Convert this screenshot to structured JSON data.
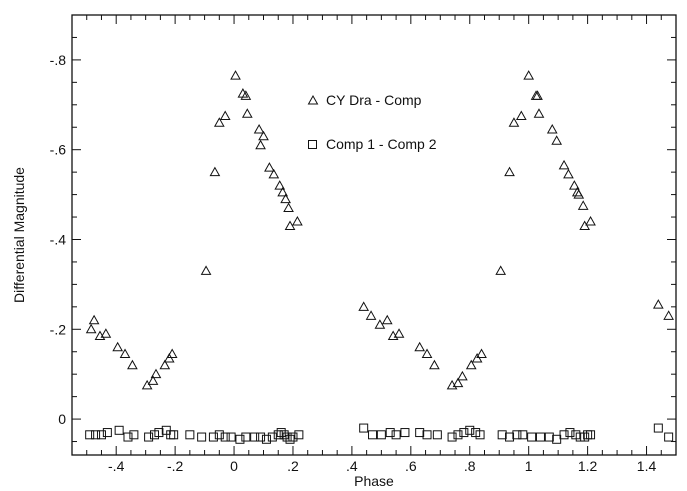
{
  "chart_data": {
    "type": "scatter",
    "title": "",
    "xlabel": "Phase",
    "ylabel": "Differential Magnitude",
    "xlim": [
      -0.55,
      1.5
    ],
    "ylim": [
      0.08,
      -0.9
    ],
    "y_inverted": true,
    "grid": false,
    "legend_position": "top-center",
    "x_ticks": [
      {
        "v": -0.4,
        "label": "-.4"
      },
      {
        "v": -0.2,
        "label": "-.2"
      },
      {
        "v": 0,
        "label": "0"
      },
      {
        "v": 0.2,
        "label": ".2"
      },
      {
        "v": 0.4,
        "label": ".4"
      },
      {
        "v": 0.6,
        "label": ".6"
      },
      {
        "v": 0.8,
        "label": ".8"
      },
      {
        "v": 1.0,
        "label": "1"
      },
      {
        "v": 1.2,
        "label": "1.2"
      },
      {
        "v": 1.4,
        "label": "1.4"
      }
    ],
    "y_ticks": [
      {
        "v": 0,
        "label": "0"
      },
      {
        "v": -0.2,
        "label": "-.2"
      },
      {
        "v": -0.4,
        "label": "-.4"
      },
      {
        "v": -0.6,
        "label": "-.6"
      },
      {
        "v": -0.8,
        "label": "-.8"
      }
    ],
    "series": [
      {
        "name": "CY Dra - Comp",
        "marker": "triangle",
        "points": [
          [
            -0.485,
            -0.2
          ],
          [
            -0.475,
            -0.22
          ],
          [
            -0.455,
            -0.185
          ],
          [
            -0.435,
            -0.19
          ],
          [
            -0.395,
            -0.16
          ],
          [
            -0.37,
            -0.145
          ],
          [
            -0.345,
            -0.12
          ],
          [
            -0.295,
            -0.075
          ],
          [
            -0.275,
            -0.085
          ],
          [
            -0.265,
            -0.1
          ],
          [
            -0.235,
            -0.12
          ],
          [
            -0.22,
            -0.135
          ],
          [
            -0.21,
            -0.145
          ],
          [
            -0.095,
            -0.33
          ],
          [
            -0.065,
            -0.55
          ],
          [
            -0.05,
            -0.66
          ],
          [
            -0.03,
            -0.675
          ],
          [
            0.005,
            -0.765
          ],
          [
            0.03,
            -0.725
          ],
          [
            0.04,
            -0.72
          ],
          [
            0.045,
            -0.68
          ],
          [
            0.085,
            -0.645
          ],
          [
            0.09,
            -0.61
          ],
          [
            0.1,
            -0.63
          ],
          [
            0.12,
            -0.56
          ],
          [
            0.135,
            -0.545
          ],
          [
            0.155,
            -0.52
          ],
          [
            0.165,
            -0.505
          ],
          [
            0.175,
            -0.49
          ],
          [
            0.185,
            -0.47
          ],
          [
            0.19,
            -0.43
          ],
          [
            0.215,
            -0.44
          ],
          [
            0.44,
            -0.25
          ],
          [
            0.465,
            -0.23
          ],
          [
            0.495,
            -0.21
          ],
          [
            0.52,
            -0.22
          ],
          [
            0.54,
            -0.185
          ],
          [
            0.56,
            -0.19
          ],
          [
            0.63,
            -0.16
          ],
          [
            0.655,
            -0.145
          ],
          [
            0.68,
            -0.12
          ],
          [
            0.74,
            -0.075
          ],
          [
            0.76,
            -0.08
          ],
          [
            0.775,
            -0.095
          ],
          [
            0.805,
            -0.12
          ],
          [
            0.825,
            -0.135
          ],
          [
            0.84,
            -0.145
          ],
          [
            0.905,
            -0.33
          ],
          [
            0.935,
            -0.55
          ],
          [
            0.95,
            -0.66
          ],
          [
            0.975,
            -0.675
          ],
          [
            1.0,
            -0.765
          ],
          [
            1.025,
            -0.72
          ],
          [
            1.03,
            -0.72
          ],
          [
            1.035,
            -0.68
          ],
          [
            1.08,
            -0.645
          ],
          [
            1.095,
            -0.62
          ],
          [
            1.12,
            -0.565
          ],
          [
            1.135,
            -0.545
          ],
          [
            1.155,
            -0.52
          ],
          [
            1.165,
            -0.505
          ],
          [
            1.17,
            -0.5
          ],
          [
            1.185,
            -0.475
          ],
          [
            1.19,
            -0.43
          ],
          [
            1.21,
            -0.44
          ],
          [
            1.44,
            -0.255
          ],
          [
            1.475,
            -0.23
          ]
        ]
      },
      {
        "name": "Comp 1 - Comp 2",
        "marker": "square",
        "points": [
          [
            -0.49,
            0.035
          ],
          [
            -0.47,
            0.035
          ],
          [
            -0.45,
            0.035
          ],
          [
            -0.43,
            0.03
          ],
          [
            -0.39,
            0.025
          ],
          [
            -0.36,
            0.04
          ],
          [
            -0.34,
            0.035
          ],
          [
            -0.29,
            0.04
          ],
          [
            -0.27,
            0.035
          ],
          [
            -0.255,
            0.03
          ],
          [
            -0.23,
            0.025
          ],
          [
            -0.215,
            0.035
          ],
          [
            -0.205,
            0.035
          ],
          [
            -0.15,
            0.035
          ],
          [
            -0.11,
            0.04
          ],
          [
            -0.07,
            0.04
          ],
          [
            -0.05,
            0.035
          ],
          [
            -0.03,
            0.04
          ],
          [
            -0.01,
            0.04
          ],
          [
            0.02,
            0.045
          ],
          [
            0.04,
            0.04
          ],
          [
            0.07,
            0.04
          ],
          [
            0.09,
            0.04
          ],
          [
            0.11,
            0.045
          ],
          [
            0.13,
            0.04
          ],
          [
            0.15,
            0.035
          ],
          [
            0.16,
            0.03
          ],
          [
            0.17,
            0.035
          ],
          [
            0.18,
            0.04
          ],
          [
            0.19,
            0.045
          ],
          [
            0.2,
            0.04
          ],
          [
            0.22,
            0.035
          ],
          [
            0.44,
            0.02
          ],
          [
            0.47,
            0.035
          ],
          [
            0.5,
            0.035
          ],
          [
            0.53,
            0.03
          ],
          [
            0.55,
            0.035
          ],
          [
            0.58,
            0.03
          ],
          [
            0.63,
            0.03
          ],
          [
            0.655,
            0.035
          ],
          [
            0.69,
            0.035
          ],
          [
            0.74,
            0.04
          ],
          [
            0.76,
            0.035
          ],
          [
            0.78,
            0.03
          ],
          [
            0.8,
            0.025
          ],
          [
            0.82,
            0.03
          ],
          [
            0.835,
            0.035
          ],
          [
            0.91,
            0.035
          ],
          [
            0.935,
            0.04
          ],
          [
            0.96,
            0.035
          ],
          [
            0.98,
            0.035
          ],
          [
            1.01,
            0.04
          ],
          [
            1.04,
            0.04
          ],
          [
            1.07,
            0.04
          ],
          [
            1.095,
            0.045
          ],
          [
            1.12,
            0.035
          ],
          [
            1.14,
            0.03
          ],
          [
            1.16,
            0.035
          ],
          [
            1.175,
            0.04
          ],
          [
            1.19,
            0.04
          ],
          [
            1.2,
            0.035
          ],
          [
            1.21,
            0.035
          ],
          [
            1.44,
            0.02
          ],
          [
            1.475,
            0.04
          ]
        ]
      }
    ]
  }
}
